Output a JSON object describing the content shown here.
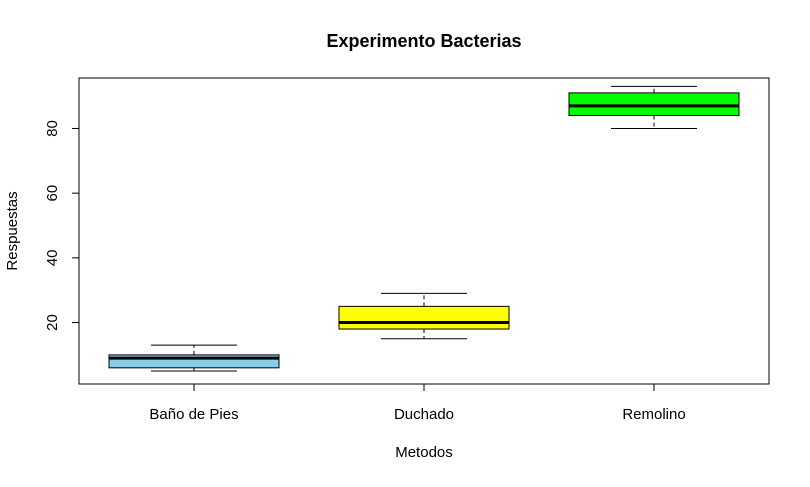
{
  "chart_data": {
    "type": "boxplot",
    "title": "Experimento Bacterias",
    "xlabel": "Metodos",
    "ylabel": "Respuestas",
    "categories": [
      "Baño de Pies",
      "Duchado",
      "Remolino"
    ],
    "boxes": [
      {
        "category": "Baño de Pies",
        "min": 5,
        "q1": 6,
        "median": 9,
        "q3": 10,
        "max": 13,
        "color": "#87CEEB"
      },
      {
        "category": "Duchado",
        "min": 15,
        "q1": 18,
        "median": 20,
        "q3": 25,
        "max": 29,
        "color": "#FFFF00"
      },
      {
        "category": "Remolino",
        "min": 80,
        "q1": 84,
        "median": 87,
        "q3": 91,
        "max": 93,
        "color": "#00FF00"
      }
    ],
    "ylim": [
      1,
      95.6
    ],
    "yticks": [
      20,
      40,
      60,
      80
    ],
    "grid": false,
    "legend": "none"
  }
}
